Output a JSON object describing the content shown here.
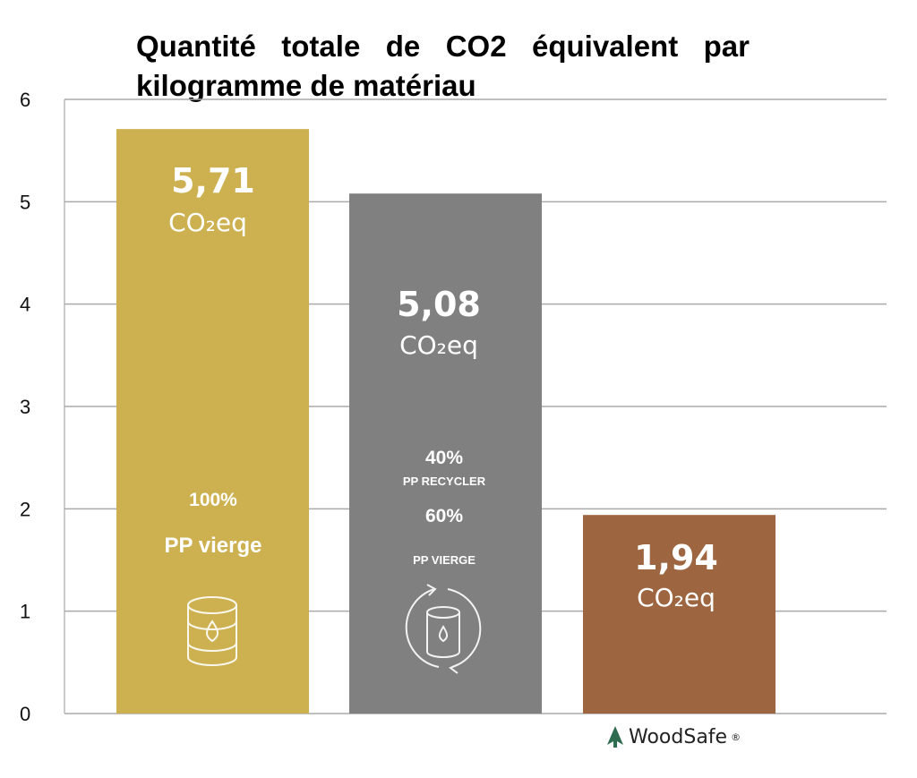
{
  "chart_data": {
    "type": "bar",
    "title": "Quantité totale de CO2 équivalent par kilogramme de matériau",
    "xlabel": "",
    "ylabel": "",
    "ylim": [
      0,
      6
    ],
    "yticks": [
      "0",
      "1",
      "2",
      "3",
      "4",
      "5",
      "6"
    ],
    "grid": true,
    "categories": [
      "PP vierge",
      "PP recycler/vierge",
      "WoodSafe"
    ],
    "values": [
      5.71,
      5.08,
      1.94
    ],
    "value_labels": [
      "5,71",
      "5,08",
      "1,94"
    ],
    "unit_label": "CO₂eq",
    "colors": [
      "#CDB050",
      "#808080",
      "#9E6640"
    ],
    "annotations": {
      "bar1": {
        "pct": "100%",
        "label": "PP vierge",
        "icon": "oil-barrel-icon"
      },
      "bar2": {
        "pct1": "40%",
        "label1": "PP RECYCLER",
        "pct2": "60%",
        "label2": "PP VIERGE",
        "icon": "recycle-barrel-icon"
      }
    }
  },
  "logo": {
    "text": "WoodSafe",
    "mark": "®"
  }
}
